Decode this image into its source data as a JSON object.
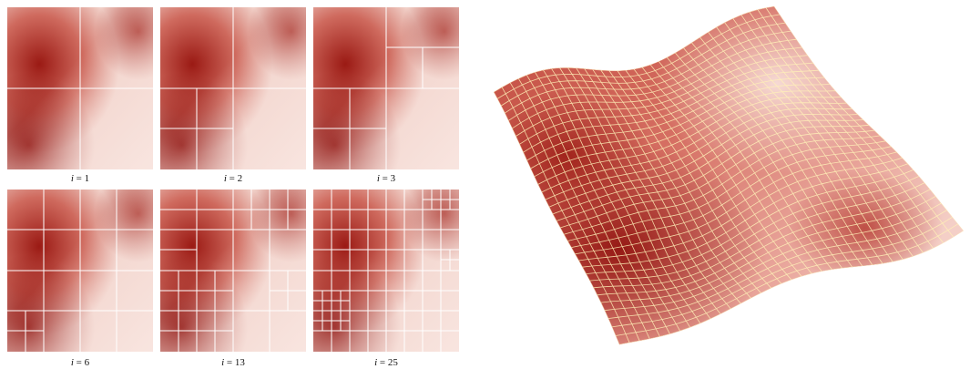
{
  "panels": [
    {
      "iteration_label": "i",
      "iteration_value": "1"
    },
    {
      "iteration_label": "i",
      "iteration_value": "2"
    },
    {
      "iteration_label": "i",
      "iteration_value": "3"
    },
    {
      "iteration_label": "i",
      "iteration_value": "6"
    },
    {
      "iteration_label": "i",
      "iteration_value": "13"
    },
    {
      "iteration_label": "i",
      "iteration_value": "25"
    }
  ],
  "colors": {
    "terrain_dark": "#8e0f0b",
    "terrain_mid": "#c8574c",
    "terrain_light": "#f6e0da",
    "grid_line": "#ffffff",
    "mesh_line": "#fff1b8"
  }
}
